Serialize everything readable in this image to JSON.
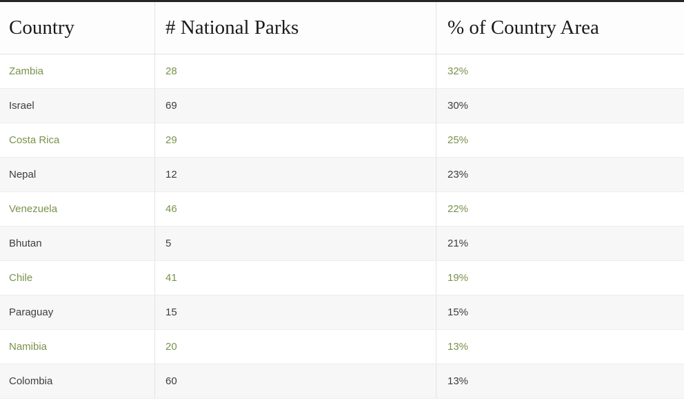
{
  "chart_data": {
    "type": "table",
    "title": "",
    "columns": [
      "Country",
      "# National Parks",
      "% of Country Area"
    ],
    "rows": [
      [
        "Zambia",
        28,
        "32%"
      ],
      [
        "Israel",
        69,
        "30%"
      ],
      [
        "Costa Rica",
        29,
        "25%"
      ],
      [
        "Nepal",
        12,
        "23%"
      ],
      [
        "Venezuela",
        46,
        "22%"
      ],
      [
        "Bhutan",
        5,
        "21%"
      ],
      [
        "Chile",
        41,
        "19%"
      ],
      [
        "Paraguay",
        15,
        "15%"
      ],
      [
        "Namibia",
        20,
        "13%"
      ],
      [
        "Colombia",
        60,
        "13%"
      ]
    ]
  },
  "table": {
    "header": {
      "country": "Country",
      "parks": "# National Parks",
      "area": "% of Country Area"
    },
    "rows": [
      {
        "country": "Zambia",
        "parks": "28",
        "area": "32%"
      },
      {
        "country": "Israel",
        "parks": "69",
        "area": "30%"
      },
      {
        "country": "Costa Rica",
        "parks": "29",
        "area": "25%"
      },
      {
        "country": "Nepal",
        "parks": "12",
        "area": "23%"
      },
      {
        "country": "Venezuela",
        "parks": "46",
        "area": "22%"
      },
      {
        "country": "Bhutan",
        "parks": "5",
        "area": "21%"
      },
      {
        "country": "Chile",
        "parks": "41",
        "area": "19%"
      },
      {
        "country": "Paraguay",
        "parks": "15",
        "area": "15%"
      },
      {
        "country": "Namibia",
        "parks": "20",
        "area": "13%"
      },
      {
        "country": "Colombia",
        "parks": "60",
        "area": "13%"
      }
    ],
    "colors": {
      "accent_green": "#78924b",
      "dark_text": "#3d3d3d",
      "header_text": "#1a1a1a",
      "stripe_gray": "#f7f7f7",
      "divider": "#e3e3e3",
      "top_border": "#262626"
    }
  }
}
